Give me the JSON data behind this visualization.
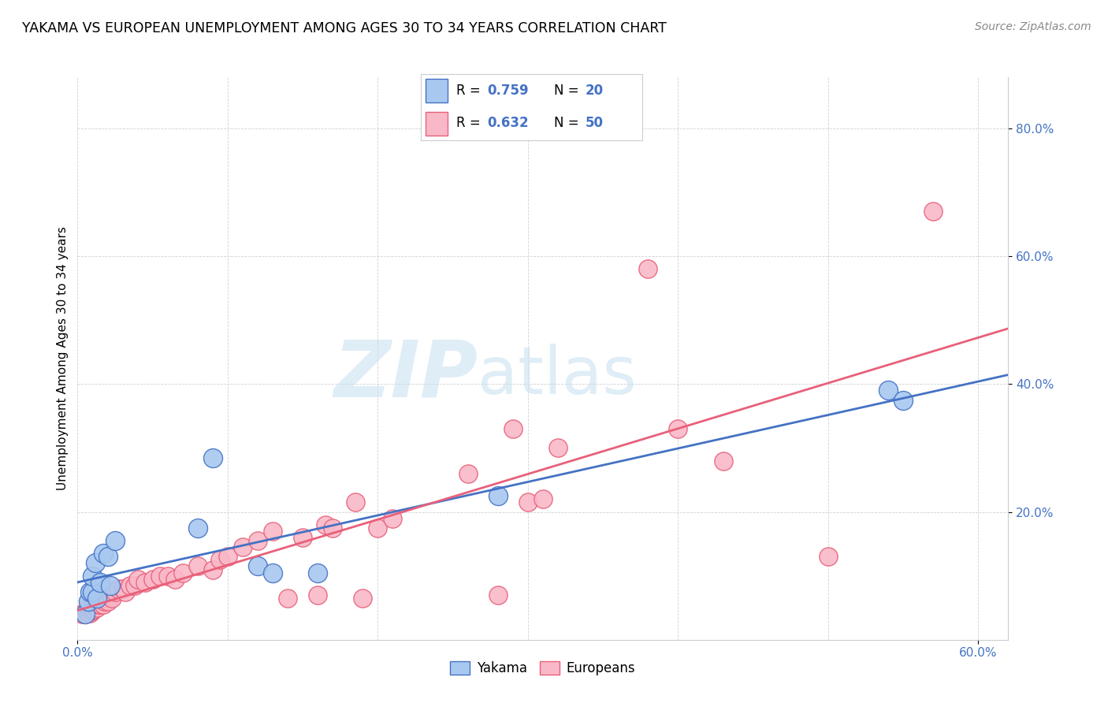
{
  "title": "YAKAMA VS EUROPEAN UNEMPLOYMENT AMONG AGES 30 TO 34 YEARS CORRELATION CHART",
  "source": "Source: ZipAtlas.com",
  "ylabel": "Unemployment Among Ages 30 to 34 years",
  "xlim": [
    0.0,
    0.62
  ],
  "ylim": [
    0.0,
    0.88
  ],
  "yakama_color": "#A8C8F0",
  "europeans_color": "#F9B8C8",
  "yakama_line_color": "#4472C4",
  "europeans_line_color": "#E8607A",
  "yakama_x": [
    0.005,
    0.007,
    0.008,
    0.01,
    0.01,
    0.012,
    0.013,
    0.015,
    0.017,
    0.02,
    0.022,
    0.025,
    0.08,
    0.09,
    0.12,
    0.13,
    0.16,
    0.28,
    0.54,
    0.55
  ],
  "yakama_y": [
    0.04,
    0.06,
    0.075,
    0.075,
    0.1,
    0.12,
    0.065,
    0.09,
    0.135,
    0.13,
    0.085,
    0.155,
    0.175,
    0.285,
    0.115,
    0.105,
    0.105,
    0.225,
    0.39,
    0.375
  ],
  "europeans_x": [
    0.003,
    0.005,
    0.006,
    0.007,
    0.008,
    0.009,
    0.01,
    0.01,
    0.011,
    0.012,
    0.013,
    0.014,
    0.015,
    0.016,
    0.017,
    0.018,
    0.019,
    0.02,
    0.022,
    0.023,
    0.025,
    0.027,
    0.03,
    0.032,
    0.035,
    0.038,
    0.04,
    0.045,
    0.05,
    0.055,
    0.06,
    0.065,
    0.07,
    0.08,
    0.09,
    0.095,
    0.1,
    0.11,
    0.12,
    0.13,
    0.14,
    0.15,
    0.16,
    0.165,
    0.17,
    0.185,
    0.19,
    0.2,
    0.21,
    0.26,
    0.28,
    0.29,
    0.3,
    0.31,
    0.32,
    0.38,
    0.4,
    0.43,
    0.5,
    0.57
  ],
  "europeans_y": [
    0.04,
    0.04,
    0.045,
    0.05,
    0.042,
    0.048,
    0.045,
    0.052,
    0.048,
    0.052,
    0.05,
    0.055,
    0.055,
    0.06,
    0.055,
    0.06,
    0.065,
    0.06,
    0.07,
    0.065,
    0.075,
    0.08,
    0.08,
    0.075,
    0.085,
    0.085,
    0.095,
    0.09,
    0.095,
    0.1,
    0.1,
    0.095,
    0.105,
    0.115,
    0.11,
    0.125,
    0.13,
    0.145,
    0.155,
    0.17,
    0.065,
    0.16,
    0.07,
    0.18,
    0.175,
    0.215,
    0.065,
    0.175,
    0.19,
    0.26,
    0.07,
    0.33,
    0.215,
    0.22,
    0.3,
    0.58,
    0.33,
    0.28,
    0.13,
    0.67
  ],
  "yakama_line_start_x": 0.0,
  "yakama_line_end_x": 0.62,
  "europeans_line_start_x": 0.0,
  "europeans_line_end_x": 0.62,
  "watermark_text": "ZIPatlas",
  "watermark_zip_color": "#C8E0F0",
  "watermark_atlas_color": "#C8E0F0"
}
